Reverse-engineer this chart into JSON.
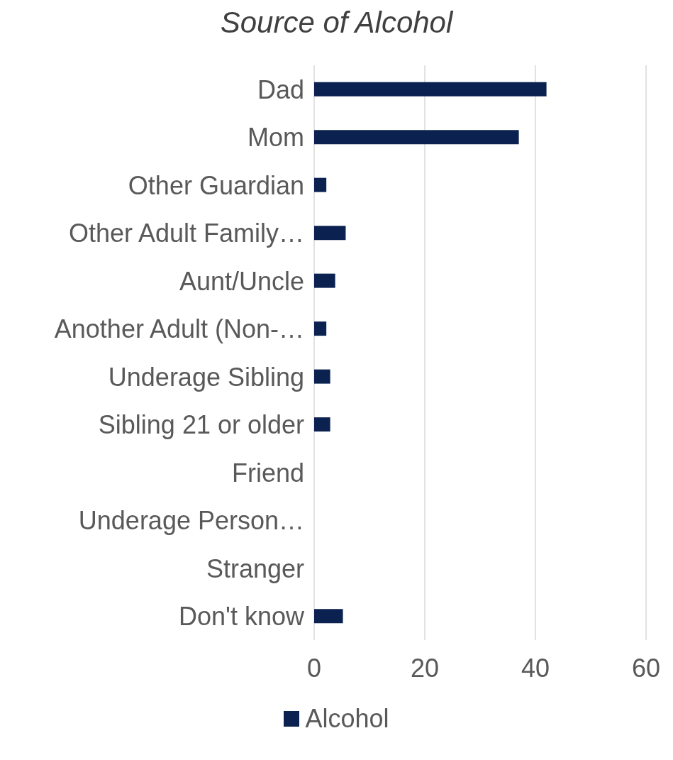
{
  "chart_data": {
    "type": "bar",
    "orientation": "horizontal",
    "title": "Source of Alcohol",
    "categories": [
      "Dad",
      "Mom",
      "Other Guardian",
      "Other Adult Family…",
      "Aunt/Uncle",
      "Another Adult (Non-…",
      "Underage Sibling",
      "Sibling 21 or older",
      "Friend",
      "Underage Person…",
      "Stranger",
      "Don't know"
    ],
    "series": [
      {
        "name": "Alcohol",
        "color": "#0b2150",
        "values": [
          42,
          37,
          2.2,
          5.7,
          3.8,
          2.2,
          2.9,
          2.9,
          0,
          0,
          0,
          5.2
        ]
      }
    ],
    "xlim": [
      0,
      60
    ],
    "xticks": [
      0,
      20,
      40,
      60
    ],
    "grid": "x",
    "legend": "bottom"
  }
}
